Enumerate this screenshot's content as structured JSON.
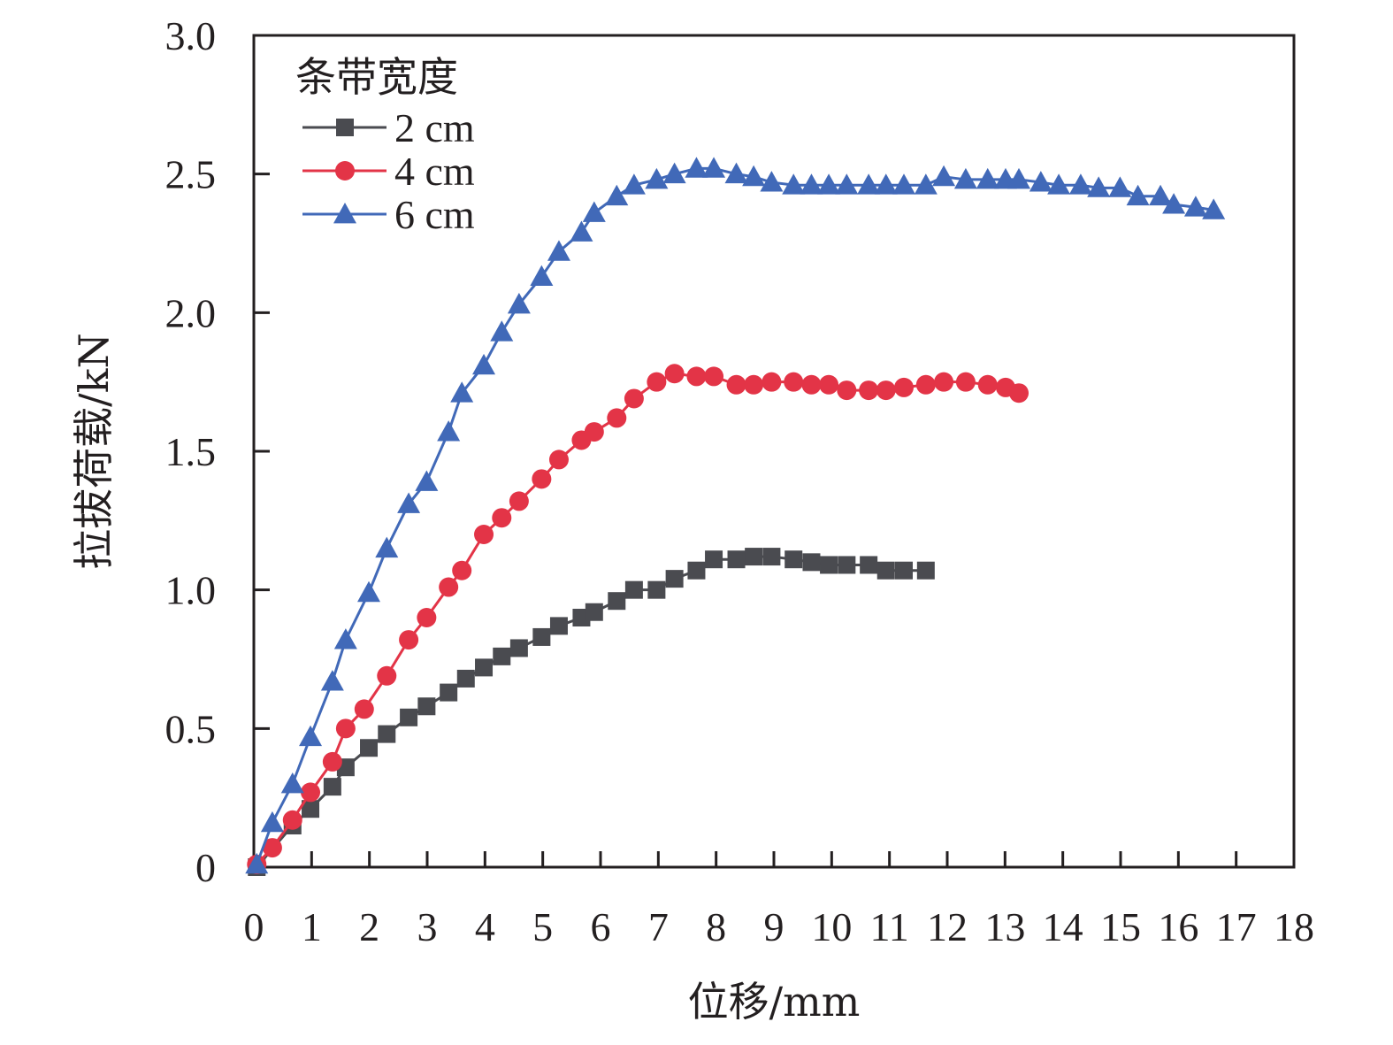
{
  "chart_data": {
    "type": "line",
    "title": "",
    "xlabel": "位移/mm",
    "ylabel": "拉拔荷载/kN",
    "xlim": [
      0,
      18
    ],
    "ylim": [
      0,
      3.0
    ],
    "x_ticks": [
      "0",
      "1",
      "2",
      "3",
      "4",
      "5",
      "6",
      "7",
      "8",
      "9",
      "10",
      "11",
      "12",
      "13",
      "14",
      "15",
      "16",
      "17",
      "18"
    ],
    "y_ticks": [
      "0",
      "0.5",
      "1.0",
      "1.5",
      "2.0",
      "2.5",
      "3.0"
    ],
    "y_tick_values": [
      0,
      0.5,
      1.0,
      1.5,
      2.0,
      2.5,
      3.0
    ],
    "x_tick_values": [
      0,
      1,
      2,
      3,
      4,
      5,
      6,
      7,
      8,
      9,
      10,
      11,
      12,
      13,
      14,
      15,
      16,
      17,
      18
    ],
    "grid": false,
    "legend": {
      "title": "条带宽度",
      "placement": "top-left"
    },
    "series": [
      {
        "name": "2 cm",
        "color": "#4a4b50",
        "marker": "square",
        "x": [
          0.05,
          0.67,
          0.98,
          1.36,
          1.59,
          1.99,
          2.3,
          2.68,
          2.99,
          3.37,
          3.67,
          3.98,
          4.29,
          4.59,
          4.98,
          5.28,
          5.67,
          5.89,
          6.28,
          6.58,
          6.97,
          7.28,
          7.66,
          7.96,
          8.35,
          8.65,
          8.96,
          9.34,
          9.65,
          9.95,
          10.26,
          10.64,
          10.94,
          11.25,
          11.63
        ],
        "y": [
          0.0,
          0.15,
          0.21,
          0.29,
          0.36,
          0.43,
          0.48,
          0.54,
          0.58,
          0.63,
          0.68,
          0.72,
          0.76,
          0.79,
          0.83,
          0.87,
          0.9,
          0.92,
          0.96,
          1.0,
          1.0,
          1.04,
          1.07,
          1.11,
          1.11,
          1.12,
          1.12,
          1.11,
          1.1,
          1.09,
          1.09,
          1.09,
          1.07,
          1.07,
          1.07
        ]
      },
      {
        "name": "4 cm",
        "color": "#e33447",
        "marker": "circle",
        "x": [
          0.05,
          0.32,
          0.67,
          0.98,
          1.36,
          1.59,
          1.91,
          2.3,
          2.68,
          2.99,
          3.37,
          3.6,
          3.98,
          4.29,
          4.59,
          4.98,
          5.28,
          5.67,
          5.89,
          6.28,
          6.58,
          6.97,
          7.28,
          7.66,
          7.96,
          8.35,
          8.65,
          8.96,
          9.34,
          9.65,
          9.95,
          10.26,
          10.64,
          10.94,
          11.25,
          11.63,
          11.94,
          12.32,
          12.7,
          13.01,
          13.24
        ],
        "y": [
          0.01,
          0.07,
          0.17,
          0.27,
          0.38,
          0.5,
          0.57,
          0.69,
          0.82,
          0.9,
          1.01,
          1.07,
          1.2,
          1.26,
          1.32,
          1.4,
          1.47,
          1.54,
          1.57,
          1.62,
          1.69,
          1.75,
          1.78,
          1.77,
          1.77,
          1.74,
          1.74,
          1.75,
          1.75,
          1.74,
          1.74,
          1.72,
          1.72,
          1.72,
          1.73,
          1.74,
          1.75,
          1.75,
          1.74,
          1.73,
          1.71
        ]
      },
      {
        "name": "6 cm",
        "color": "#4169b8",
        "marker": "triangle",
        "x": [
          0.05,
          0.32,
          0.67,
          0.98,
          1.36,
          1.59,
          1.99,
          2.3,
          2.68,
          2.99,
          3.37,
          3.6,
          3.98,
          4.29,
          4.59,
          4.98,
          5.28,
          5.67,
          5.89,
          6.28,
          6.58,
          6.97,
          7.28,
          7.66,
          7.96,
          8.35,
          8.65,
          8.96,
          9.34,
          9.65,
          9.95,
          10.26,
          10.64,
          10.94,
          11.25,
          11.63,
          11.94,
          12.32,
          12.7,
          13.01,
          13.24,
          13.62,
          13.93,
          14.31,
          14.62,
          14.99,
          15.3,
          15.69,
          15.92,
          16.3,
          16.61
        ],
        "y": [
          0.01,
          0.16,
          0.3,
          0.47,
          0.67,
          0.82,
          0.99,
          1.15,
          1.31,
          1.39,
          1.57,
          1.71,
          1.81,
          1.93,
          2.03,
          2.13,
          2.22,
          2.29,
          2.36,
          2.42,
          2.46,
          2.48,
          2.5,
          2.52,
          2.52,
          2.5,
          2.49,
          2.47,
          2.46,
          2.46,
          2.46,
          2.46,
          2.46,
          2.46,
          2.46,
          2.46,
          2.49,
          2.48,
          2.48,
          2.48,
          2.48,
          2.47,
          2.46,
          2.46,
          2.45,
          2.45,
          2.42,
          2.42,
          2.39,
          2.38,
          2.37
        ]
      }
    ]
  }
}
